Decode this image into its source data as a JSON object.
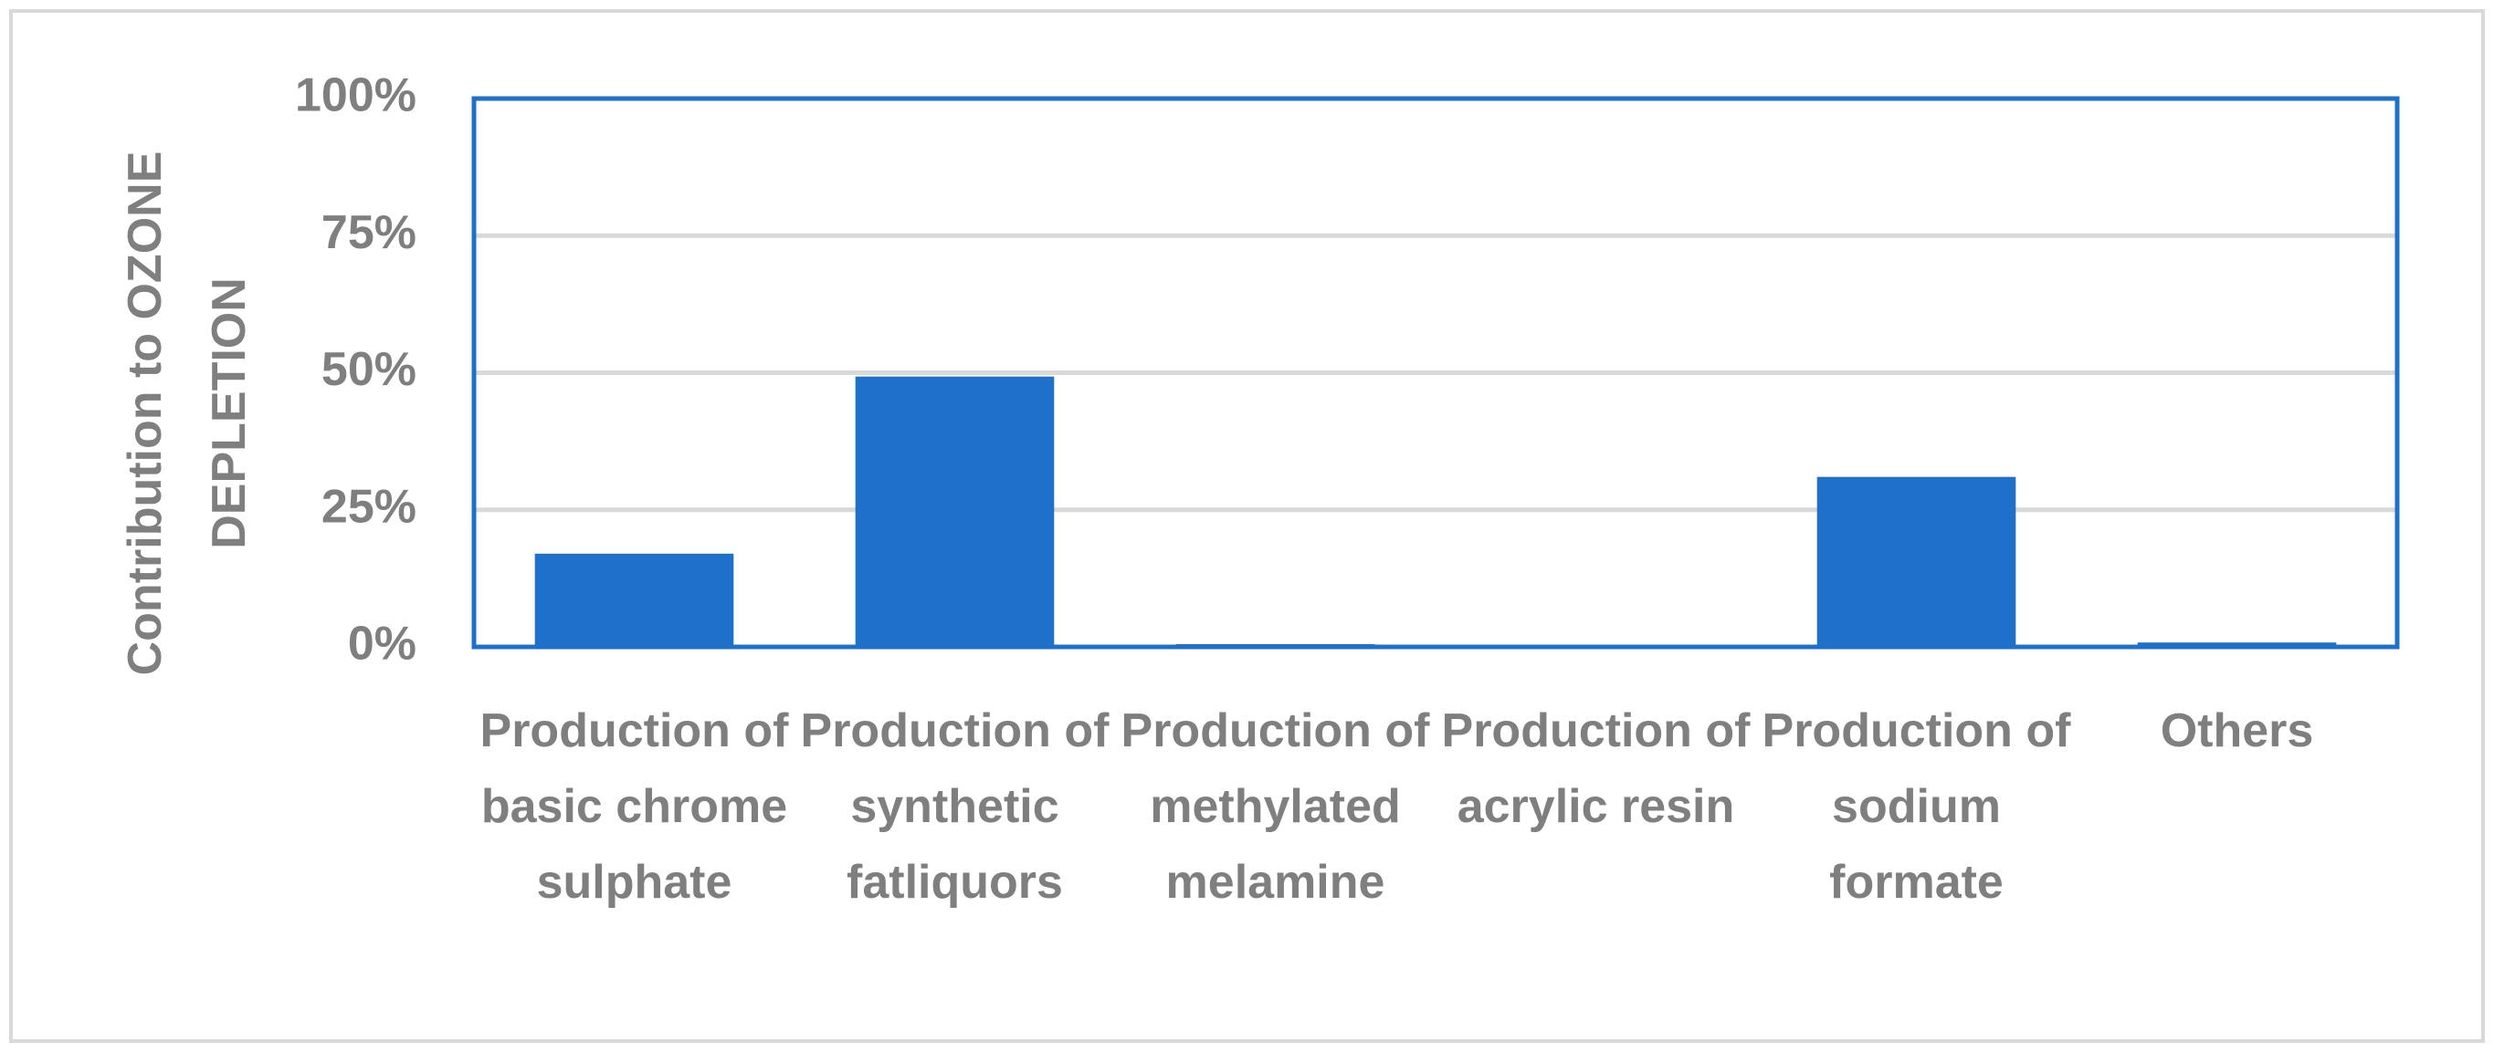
{
  "chart_data": {
    "type": "bar",
    "y_axis_label": "Contribution to OZONE DEPLETION",
    "categories": [
      "Production of basic chrome sulphate",
      "Production of synthetic fatliquors",
      "Production of methylated melamine",
      "Production of acrylic resin",
      "Production of sodium formate",
      "Others"
    ],
    "values": [
      17,
      49.3,
      0.5,
      0.3,
      31,
      0.8
    ],
    "color": "#1f70c8",
    "ylim": [
      0,
      100
    ],
    "yticks": [
      {
        "value": 0,
        "label": "0%"
      },
      {
        "value": 25,
        "label": "25%"
      },
      {
        "value": 50,
        "label": "50%"
      },
      {
        "value": 75,
        "label": "75%"
      },
      {
        "value": 100,
        "label": "100%"
      }
    ],
    "grid": true
  }
}
